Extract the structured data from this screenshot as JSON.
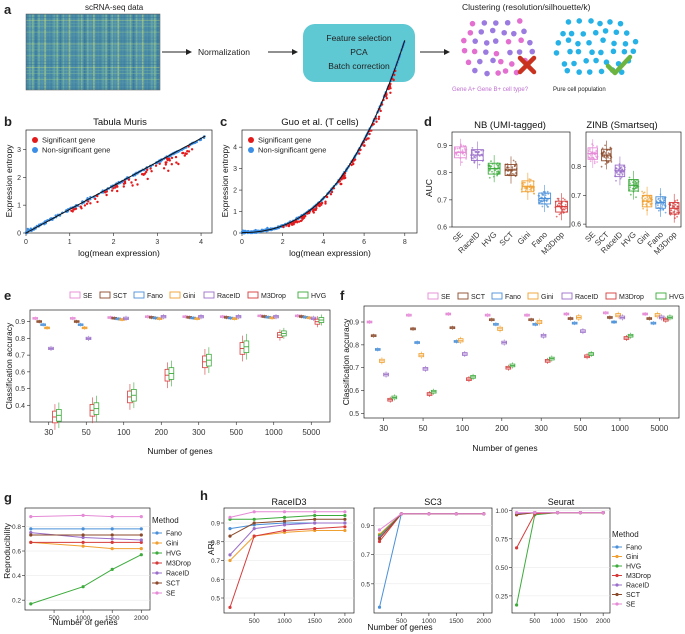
{
  "colors": {
    "fano": "#4a90d9",
    "gini": "#f0a030",
    "hvg": "#3cab3c",
    "m3drop": "#d63b3b",
    "raceid": "#9b6fc9",
    "sct": "#8b4a2b",
    "se": "#e58ad6",
    "teal": "#5ec8d3",
    "blue": "#3b8ee6",
    "red": "#e31a1c"
  },
  "panel_a": {
    "label": "a",
    "data_label": "scRNA-seq data",
    "normalization": "Normalization",
    "box_lines": [
      "Feature selection",
      "PCA",
      "Batch correction"
    ],
    "clustering_title": "Clustering (resolution/silhouette/k)",
    "caption_left": "Gene A+ Gene B+ cell type?",
    "caption_right": "Pure cell population"
  },
  "panel_b": {
    "label": "b",
    "title": "Tabula Muris",
    "xlabel": "log(mean expression)",
    "ylabel": "Expression entropy",
    "legend": [
      "Significant gene",
      "Non-significant gene"
    ],
    "xticks": [
      "0",
      "1",
      "2",
      "3",
      "4"
    ],
    "yticks": [
      "0",
      "1",
      "2",
      "3"
    ]
  },
  "panel_c": {
    "label": "c",
    "title": "Guo et al. (T cells)",
    "xlabel": "log(mean expression)",
    "ylabel": "Expression entropy",
    "legend": [
      "Significant gene",
      "Non-significant gene"
    ],
    "xticks": [
      "0",
      "2",
      "4",
      "6",
      "8"
    ],
    "yticks": [
      "0",
      "1",
      "2",
      "3",
      "4"
    ]
  },
  "panel_d": {
    "label": "d",
    "ylabel": "AUC",
    "left": {
      "title": "NB (UMI-tagged)",
      "methods": [
        "SE",
        "RaceID",
        "HVG",
        "SCT",
        "Gini",
        "Fano",
        "M3Drop"
      ],
      "medians": [
        0.875,
        0.865,
        0.815,
        0.81,
        0.75,
        0.705,
        0.675
      ],
      "yticks": [
        "0.6",
        "0.7",
        "0.8",
        "0.9"
      ]
    },
    "right": {
      "title": "ZINB (Smartseq)",
      "methods": [
        "SE",
        "SCT",
        "RaceID",
        "HVG",
        "Gini",
        "Fano",
        "M3Drop"
      ],
      "medians": [
        0.845,
        0.84,
        0.785,
        0.735,
        0.68,
        0.675,
        0.655
      ],
      "yticks": [
        "0.6",
        "0.7",
        "0.8"
      ]
    }
  },
  "panel_e": {
    "label": "e",
    "ylabel": "Classification accuracy",
    "xlabel": "Number of genes",
    "legend": [
      "SE",
      "SCT",
      "Fano",
      "Gini",
      "RaceID",
      "M3Drop",
      "HVG"
    ],
    "categories": [
      "30",
      "50",
      "100",
      "200",
      "300",
      "500",
      "1000",
      "5000"
    ],
    "yticks": [
      "0.4",
      "0.5",
      "0.6",
      "0.7",
      "0.8",
      "0.9"
    ]
  },
  "panel_f": {
    "label": "f",
    "ylabel": "Classification accuracy",
    "xlabel": "Number of genes",
    "legend": [
      "SE",
      "SCT",
      "Fano",
      "Gini",
      "RaceID",
      "M3Drop",
      "HVG"
    ],
    "categories": [
      "30",
      "50",
      "100",
      "200",
      "300",
      "500",
      "1000",
      "5000"
    ],
    "yticks": [
      "0.5",
      "0.6",
      "0.7",
      "0.8",
      "0.9"
    ]
  },
  "panel_g": {
    "label": "g",
    "ylabel": "Reproducibility",
    "xlabel": "Number of genes",
    "legend_title": "Method",
    "legend": [
      "Fano",
      "Gini",
      "HVG",
      "M3Drop",
      "RaceID",
      "SCT",
      "SE"
    ],
    "xticks": [
      "500",
      "1000",
      "1500",
      "2000"
    ],
    "yticks": [
      "0.2",
      "0.4",
      "0.6",
      "0.8"
    ]
  },
  "panel_h": {
    "label": "h",
    "ylabel": "ARI",
    "xlabel": "Number of genes",
    "legend_title": "Method",
    "legend": [
      "Fano",
      "Gini",
      "HVG",
      "M3Drop",
      "RaceID",
      "SCT",
      "SE"
    ],
    "titles": [
      "RaceID3",
      "SC3",
      "Seurat"
    ],
    "xticks": [
      "500",
      "1000",
      "1500",
      "2000"
    ],
    "yticks1": [
      "0.5",
      "0.6",
      "0.7",
      "0.8",
      "0.9"
    ],
    "yticks2": [
      "0.5",
      "0.7",
      "0.9"
    ],
    "yticks3": [
      "0.25",
      "0.50",
      "0.75",
      "1.00"
    ]
  },
  "chart_data": [
    {
      "type": "line",
      "title": "Reproducibility",
      "x": [
        100,
        1000,
        1500,
        2000
      ],
      "series": [
        {
          "name": "Fano",
          "values": [
            0.78,
            0.78,
            0.78,
            0.78
          ]
        },
        {
          "name": "Gini",
          "values": [
            0.67,
            0.64,
            0.62,
            0.62
          ]
        },
        {
          "name": "HVG",
          "values": [
            0.17,
            0.31,
            0.45,
            0.57
          ]
        },
        {
          "name": "M3Drop",
          "values": [
            0.67,
            0.67,
            0.67,
            0.67
          ]
        },
        {
          "name": "RaceID",
          "values": [
            0.75,
            0.71,
            0.7,
            0.69
          ]
        },
        {
          "name": "SCT",
          "values": [
            0.73,
            0.73,
            0.73,
            0.73
          ]
        },
        {
          "name": "SE",
          "values": [
            0.88,
            0.89,
            0.88,
            0.88
          ]
        }
      ],
      "xlabel": "Number of genes",
      "ylabel": "Reproducibility",
      "ylim": [
        0.1,
        0.95
      ]
    },
    {
      "type": "line",
      "title": "RaceID3",
      "x": [
        100,
        500,
        1000,
        1500,
        2000
      ],
      "series": [
        {
          "name": "Fano",
          "values": [
            0.87,
            0.89,
            0.9,
            0.9,
            0.9
          ]
        },
        {
          "name": "Gini",
          "values": [
            0.7,
            0.83,
            0.85,
            0.86,
            0.86
          ]
        },
        {
          "name": "HVG",
          "values": [
            0.92,
            0.92,
            0.93,
            0.94,
            0.94
          ]
        },
        {
          "name": "M3Drop",
          "values": [
            0.45,
            0.83,
            0.86,
            0.87,
            0.88
          ]
        },
        {
          "name": "RaceID",
          "values": [
            0.73,
            0.87,
            0.89,
            0.9,
            0.9
          ]
        },
        {
          "name": "SCT",
          "values": [
            0.83,
            0.9,
            0.91,
            0.92,
            0.92
          ]
        },
        {
          "name": "SE",
          "values": [
            0.93,
            0.96,
            0.96,
            0.96,
            0.96
          ]
        }
      ],
      "xlabel": "Number of genes",
      "ylabel": "ARI",
      "ylim": [
        0.42,
        0.98
      ]
    },
    {
      "type": "line",
      "title": "SC3",
      "x": [
        100,
        500,
        1000,
        1500,
        2000
      ],
      "series": [
        {
          "name": "Fano",
          "values": [
            0.34,
            0.98,
            0.98,
            0.98,
            0.98
          ]
        },
        {
          "name": "Gini",
          "values": [
            0.84,
            0.98,
            0.98,
            0.98,
            0.98
          ]
        },
        {
          "name": "HVG",
          "values": [
            0.83,
            0.98,
            0.98,
            0.98,
            0.98
          ]
        },
        {
          "name": "M3Drop",
          "values": [
            0.79,
            0.98,
            0.98,
            0.98,
            0.98
          ]
        },
        {
          "name": "RaceID",
          "values": [
            0.82,
            0.98,
            0.98,
            0.98,
            0.98
          ]
        },
        {
          "name": "SCT",
          "values": [
            0.81,
            0.98,
            0.98,
            0.98,
            0.98
          ]
        },
        {
          "name": "SE",
          "values": [
            0.87,
            0.98,
            0.98,
            0.98,
            0.98
          ]
        }
      ],
      "xlabel": "Number of genes",
      "ylabel": "",
      "ylim": [
        0.3,
        1.02
      ]
    },
    {
      "type": "line",
      "title": "Seurat",
      "x": [
        100,
        500,
        1000,
        1500,
        2000
      ],
      "series": [
        {
          "name": "Fano",
          "values": [
            0.97,
            0.98,
            0.98,
            0.98,
            0.98
          ]
        },
        {
          "name": "Gini",
          "values": [
            0.96,
            0.98,
            0.98,
            0.98,
            0.98
          ]
        },
        {
          "name": "HVG",
          "values": [
            0.17,
            0.96,
            0.98,
            0.98,
            0.98
          ]
        },
        {
          "name": "M3Drop",
          "values": [
            0.67,
            0.97,
            0.98,
            0.98,
            0.98
          ]
        },
        {
          "name": "RaceID",
          "values": [
            0.97,
            0.98,
            0.98,
            0.98,
            0.98
          ]
        },
        {
          "name": "SCT",
          "values": [
            0.96,
            0.98,
            0.98,
            0.98,
            0.98
          ]
        },
        {
          "name": "SE",
          "values": [
            0.98,
            0.98,
            0.98,
            0.98,
            0.98
          ]
        }
      ],
      "xlabel": "",
      "ylabel": "",
      "ylim": [
        0.1,
        1.02
      ]
    }
  ]
}
